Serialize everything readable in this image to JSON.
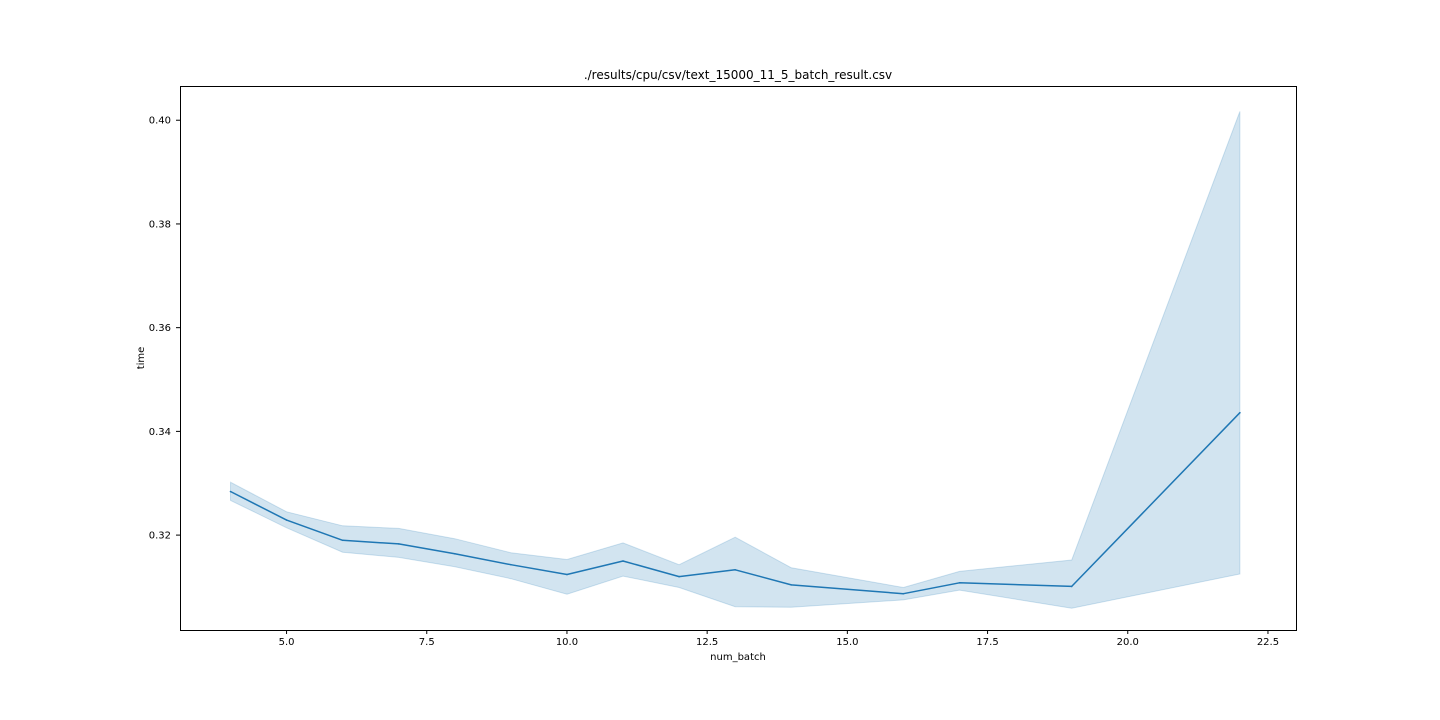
{
  "chart_data": {
    "type": "line",
    "title": "./results/cpu/csv/text_15000_11_5_batch_result.csv",
    "xlabel": "num_batch",
    "ylabel": "time",
    "xlim": [
      3.1,
      23.0
    ],
    "ylim": [
      0.3017,
      0.4066
    ],
    "xticks": [
      5.0,
      7.5,
      10.0,
      12.5,
      15.0,
      17.5,
      20.0,
      22.5
    ],
    "xtick_labels": [
      "5.0",
      "7.5",
      "10.0",
      "12.5",
      "15.0",
      "17.5",
      "20.0",
      "22.5"
    ],
    "yticks": [
      0.32,
      0.34,
      0.36,
      0.38,
      0.4
    ],
    "ytick_labels": [
      "0.32",
      "0.34",
      "0.36",
      "0.38",
      "0.40"
    ],
    "grid": false,
    "series": [
      {
        "name": "time",
        "color": "#1f77b4",
        "band_color": "#1f77b4",
        "x": [
          4,
          5,
          6,
          7,
          8,
          9,
          10,
          11,
          12,
          13,
          14,
          16,
          17,
          19,
          22
        ],
        "y": [
          0.3284,
          0.3229,
          0.319,
          0.3183,
          0.3164,
          0.3143,
          0.3124,
          0.315,
          0.312,
          0.3133,
          0.3104,
          0.3087,
          0.3108,
          0.3101,
          0.3436
        ],
        "lower": [
          0.3267,
          0.3214,
          0.3167,
          0.3157,
          0.3139,
          0.3116,
          0.3086,
          0.3121,
          0.3099,
          0.3062,
          0.3061,
          0.3075,
          0.3094,
          0.3059,
          0.3125
        ],
        "upper": [
          0.3302,
          0.3245,
          0.3218,
          0.3213,
          0.3193,
          0.3166,
          0.3153,
          0.3185,
          0.3143,
          0.3196,
          0.3137,
          0.3099,
          0.313,
          0.3152,
          0.4017
        ]
      }
    ]
  }
}
